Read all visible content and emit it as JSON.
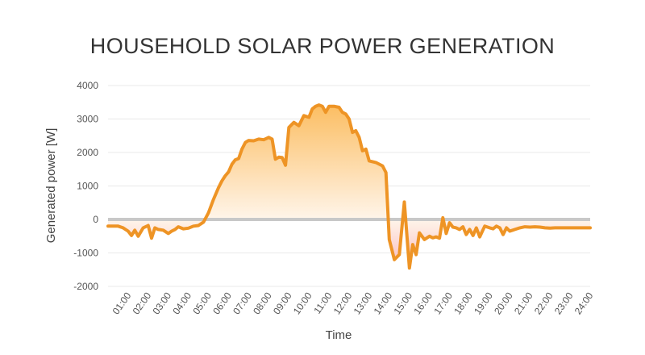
{
  "chart_data": {
    "type": "area",
    "title": "HOUSEHOLD SOLAR POWER GENERATION",
    "xlabel": "Time",
    "ylabel": "Generated power [W]",
    "ylim": [
      -2000,
      4000
    ],
    "yticks": [
      4000,
      3000,
      2000,
      1000,
      0,
      -1000,
      -2000
    ],
    "xlim": [
      "00:00",
      "24:00"
    ],
    "xticks": [
      "01:00",
      "02:00",
      "03:00",
      "04:00",
      "05:00",
      "06:00",
      "07:00",
      "08:00",
      "09:00",
      "10:00",
      "11:00",
      "12:00",
      "13:00",
      "14:00",
      "15:00",
      "16:00",
      "17:00",
      "18:00",
      "19:00",
      "20:00",
      "21:00",
      "22:00",
      "23:00",
      "24:00"
    ],
    "grid": true,
    "legend": "none",
    "series": [
      {
        "x": [
          "00:00",
          "00:30",
          "00:45",
          "01:00",
          "01:10",
          "01:20",
          "01:30",
          "01:45",
          "02:00",
          "02:10",
          "02:20",
          "02:30",
          "02:45",
          "03:00",
          "03:10",
          "03:20",
          "03:30",
          "03:45",
          "04:00",
          "04:15",
          "04:30",
          "04:45",
          "05:00",
          "05:15",
          "05:30",
          "05:40",
          "05:50",
          "06:00",
          "06:10",
          "06:20",
          "06:30",
          "06:40",
          "06:50",
          "07:00",
          "07:15",
          "07:30",
          "07:45",
          "08:00",
          "08:10",
          "08:20",
          "08:30",
          "08:40",
          "08:50",
          "09:00",
          "09:15",
          "09:30",
          "09:45",
          "10:00",
          "10:10",
          "10:20",
          "10:30",
          "10:40",
          "10:50",
          "11:00",
          "11:15",
          "11:30",
          "11:40",
          "11:50",
          "12:00",
          "12:10",
          "12:20",
          "12:30",
          "12:40",
          "12:50",
          "13:00",
          "13:20",
          "13:40",
          "13:50",
          "14:00",
          "14:15",
          "14:30",
          "14:45",
          "15:00",
          "15:10",
          "15:20",
          "15:30",
          "15:45",
          "16:00",
          "16:10",
          "16:20",
          "16:30",
          "16:40",
          "16:50",
          "17:00",
          "17:10",
          "17:20",
          "17:30",
          "17:40",
          "17:50",
          "18:00",
          "18:10",
          "18:20",
          "18:30",
          "18:45",
          "19:00",
          "19:10",
          "19:20",
          "19:30",
          "19:40",
          "19:50",
          "20:00",
          "20:15",
          "20:30",
          "20:45",
          "21:00",
          "21:15",
          "21:30",
          "21:45",
          "22:00",
          "22:15",
          "22:30",
          "22:45",
          "23:00",
          "23:15",
          "23:30",
          "23:45",
          "24:00"
        ],
        "values": [
          -200,
          -200,
          -250,
          -350,
          -480,
          -320,
          -500,
          -250,
          -180,
          -560,
          -250,
          -300,
          -320,
          -420,
          -350,
          -300,
          -220,
          -280,
          -260,
          -200,
          -180,
          -80,
          200,
          600,
          950,
          1150,
          1300,
          1420,
          1650,
          1780,
          1820,
          2100,
          2300,
          2360,
          2350,
          2400,
          2380,
          2450,
          2400,
          1800,
          1860,
          1850,
          1620,
          2750,
          2900,
          2800,
          3100,
          3050,
          3300,
          3380,
          3420,
          3380,
          3200,
          3380,
          3380,
          3350,
          3200,
          3150,
          3000,
          2600,
          2650,
          2450,
          2050,
          2100,
          1750,
          1700,
          1600,
          1400,
          -600,
          -1200,
          -1050,
          520,
          -1450,
          -750,
          -1050,
          -400,
          -600,
          -500,
          -550,
          -520,
          -560,
          50,
          -420,
          -100,
          -230,
          -250,
          -300,
          -220,
          -450,
          -300,
          -480,
          -250,
          -520,
          -200,
          -250,
          -280,
          -200,
          -250,
          -450,
          -250,
          -350,
          -300,
          -250,
          -220,
          -230,
          -220,
          -230,
          -250,
          -260,
          -250,
          -250,
          -250,
          -250,
          -250,
          -250,
          -250,
          -250
        ]
      }
    ],
    "colors": {
      "line": "#ee9425",
      "fill_top": "#fbb44b",
      "fill_zero": "#fff5ea",
      "fill_neg": "#f6a4ae",
      "zero_line": "#c8c8c8",
      "grid": "#e9e9e9"
    }
  }
}
